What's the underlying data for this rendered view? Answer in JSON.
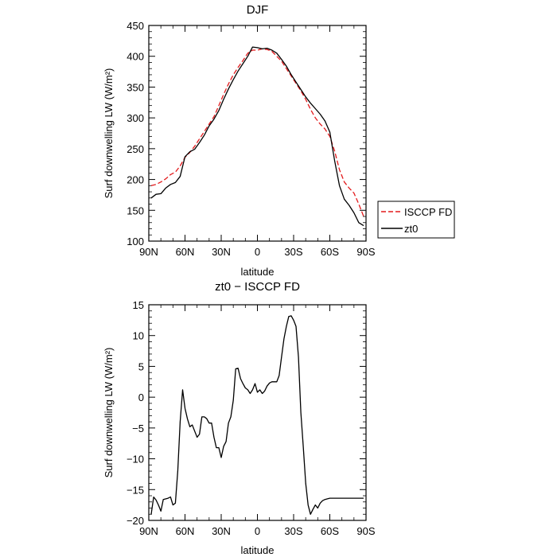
{
  "chart_data": [
    {
      "type": "line",
      "title": "DJF",
      "xlabel": "latitude",
      "ylabel": "Surf downwelling LW (W/m²)",
      "xlim": [
        90,
        -90
      ],
      "ylim": [
        100,
        450
      ],
      "x_ticks": [
        {
          "value": 90,
          "label": "90N"
        },
        {
          "value": 60,
          "label": "60N"
        },
        {
          "value": 30,
          "label": "30N"
        },
        {
          "value": 0,
          "label": "0"
        },
        {
          "value": -30,
          "label": "30S"
        },
        {
          "value": -60,
          "label": "60S"
        },
        {
          "value": -90,
          "label": "90S"
        }
      ],
      "y_ticks": [
        100,
        150,
        200,
        250,
        300,
        350,
        400,
        450
      ],
      "legend_position": "outside-right",
      "series": [
        {
          "name": "ISCCP FD",
          "color": "#e31a1c",
          "dash": "dashed",
          "x": [
            88,
            84,
            80,
            76,
            72,
            68,
            64,
            60,
            56,
            52,
            48,
            44,
            40,
            36,
            32,
            28,
            24,
            20,
            16,
            12,
            8,
            4,
            0,
            -4,
            -8,
            -12,
            -16,
            -20,
            -24,
            -28,
            -32,
            -36,
            -40,
            -44,
            -48,
            -52,
            -56,
            -60,
            -64,
            -68,
            -72,
            -76,
            -80,
            -84,
            -88
          ],
          "y": [
            190,
            192,
            196,
            201,
            208,
            212,
            222,
            236,
            244,
            254,
            266,
            278,
            290,
            302,
            320,
            338,
            355,
            370,
            382,
            393,
            405,
            410,
            410,
            412,
            411,
            408,
            400,
            392,
            380,
            368,
            356,
            344,
            330,
            314,
            300,
            290,
            282,
            270,
            246,
            216,
            196,
            186,
            178,
            160,
            140
          ]
        },
        {
          "name": "zt0",
          "color": "#000000",
          "dash": "solid",
          "x": [
            88,
            84,
            80,
            76,
            72,
            68,
            64,
            60,
            56,
            52,
            48,
            44,
            40,
            36,
            32,
            28,
            24,
            20,
            16,
            12,
            8,
            4,
            0,
            -4,
            -8,
            -12,
            -16,
            -20,
            -24,
            -28,
            -32,
            -36,
            -40,
            -44,
            -48,
            -52,
            -56,
            -60,
            -64,
            -68,
            -72,
            -76,
            -80,
            -84,
            -88
          ],
          "y": [
            170,
            176,
            177,
            186,
            192,
            195,
            205,
            237,
            245,
            249,
            260,
            272,
            287,
            298,
            312,
            330,
            347,
            362,
            376,
            388,
            400,
            415,
            414,
            412,
            413,
            410,
            405,
            395,
            384,
            370,
            358,
            346,
            334,
            324,
            315,
            306,
            295,
            277,
            230,
            190,
            168,
            158,
            146,
            130,
            125
          ]
        }
      ]
    },
    {
      "type": "line",
      "title": "zt0 − ISCCP FD",
      "xlabel": "latitude",
      "ylabel": "Surf downwelling LW (W/m²)",
      "xlim": [
        90,
        -90
      ],
      "ylim": [
        -20,
        15
      ],
      "x_ticks": [
        {
          "value": 90,
          "label": "90N"
        },
        {
          "value": 60,
          "label": "60N"
        },
        {
          "value": 30,
          "label": "30N"
        },
        {
          "value": 0,
          "label": "0"
        },
        {
          "value": -30,
          "label": "30S"
        },
        {
          "value": -60,
          "label": "60S"
        },
        {
          "value": -90,
          "label": "90S"
        }
      ],
      "y_ticks": [
        -20,
        -15,
        -10,
        -5,
        0,
        5,
        10,
        15
      ],
      "series": [
        {
          "color": "#000000",
          "dash": "solid",
          "x": [
            88,
            86,
            84,
            82,
            80,
            78,
            74,
            72,
            70,
            68,
            66,
            64,
            62,
            60,
            58,
            56,
            54,
            52,
            50,
            48,
            46,
            44,
            42,
            40,
            38,
            36,
            34,
            32,
            30,
            28,
            26,
            24,
            22,
            20,
            18,
            16,
            14,
            12,
            10,
            8,
            6,
            4,
            2,
            0,
            -2,
            -4,
            -6,
            -8,
            -10,
            -12,
            -14,
            -16,
            -18,
            -20,
            -22,
            -24,
            -26,
            -28,
            -30,
            -32,
            -34,
            -36,
            -38,
            -40,
            -42,
            -44,
            -46,
            -48,
            -50,
            -52,
            -54,
            -56,
            -58,
            -60,
            -62,
            -64,
            -66,
            -68,
            -70,
            -72,
            -74,
            -76,
            -78,
            -80,
            -82,
            -84,
            -86,
            -88
          ],
          "y": [
            -19,
            -16.2,
            -16.7,
            -17.5,
            -18.5,
            -16.6,
            -16.4,
            -16.2,
            -17.5,
            -17.2,
            -12,
            -4,
            1.2,
            -1.8,
            -3.5,
            -4.8,
            -4.5,
            -5.5,
            -6.5,
            -6,
            -3.2,
            -3.2,
            -3.5,
            -4.2,
            -4.2,
            -6.5,
            -8.2,
            -8.2,
            -9.8,
            -8,
            -7.2,
            -4.2,
            -3.2,
            -0.5,
            4.6,
            4.7,
            3,
            2.2,
            1.5,
            1.2,
            0.6,
            1.2,
            2.2,
            0.8,
            1.2,
            0.6,
            1,
            1.8,
            2.3,
            2.5,
            2.5,
            2.5,
            3.5,
            6.5,
            9.5,
            11.5,
            13.1,
            13.2,
            12.5,
            11.5,
            6.5,
            -2.5,
            -8,
            -14,
            -17.5,
            -19,
            -18.2,
            -17.5,
            -18,
            -17.2,
            -16.8,
            -16.6,
            -16.5,
            -16.4,
            -16.4,
            -16.4,
            -16.4,
            -16.4,
            -16.4,
            -16.4,
            -16.4,
            -16.4,
            -16.4,
            -16.4,
            -16.4,
            -16.4,
            -16.4,
            -16.4
          ]
        }
      ]
    }
  ]
}
